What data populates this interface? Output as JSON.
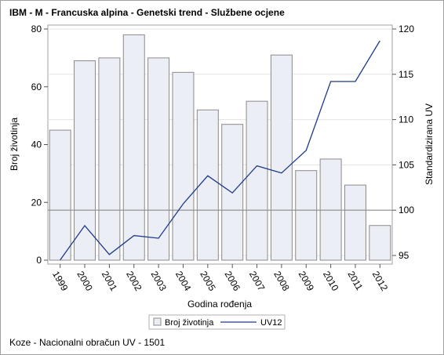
{
  "chart_data": {
    "type": "bar+line",
    "title": "IBM - M - Francuska alpina - Genetski trend - Službene ocjene",
    "xlabel": "Godina rođenja",
    "ylabel_left": "Broj životinja",
    "ylabel_right": "Standardizirana UV",
    "categories": [
      "1999",
      "2000",
      "2001",
      "2002",
      "2003",
      "2004",
      "2005",
      "2006",
      "2007",
      "2008",
      "2009",
      "2010",
      "2011",
      "2012"
    ],
    "ylim_left": [
      0,
      80
    ],
    "yticks_left": [
      0,
      20,
      40,
      60,
      80
    ],
    "ylim_right": [
      94,
      120
    ],
    "yticks_right": [
      95,
      100,
      105,
      110,
      115,
      120
    ],
    "reference_line_right": 100,
    "grid": true,
    "legend_position": "bottom",
    "series": [
      {
        "name": "Broj životinja",
        "type": "bar",
        "axis": "left",
        "color": "#eceef6",
        "edge_color": "#8a8a8a",
        "values": [
          45,
          69,
          70,
          78,
          70,
          65,
          52,
          47,
          55,
          71,
          31,
          35,
          26,
          12
        ]
      },
      {
        "name": "UV12",
        "type": "line",
        "axis": "right",
        "color": "#1f3a8a",
        "values": [
          94.5,
          98.3,
          95.1,
          97.2,
          96.9,
          100.7,
          103.8,
          101.9,
          104.9,
          104.1,
          106.6,
          114.2,
          114.2,
          118.7
        ]
      }
    ]
  },
  "footnote": "Koze - Nacionalni obračun UV - 1501"
}
